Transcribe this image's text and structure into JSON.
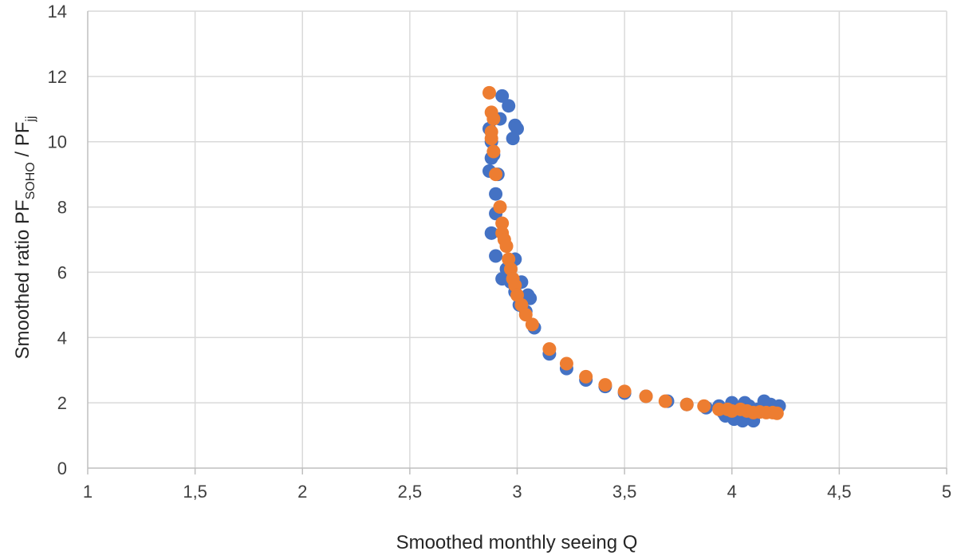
{
  "chart_data": {
    "type": "scatter",
    "xlabel": "Smoothed monthly seeing Q",
    "ylabel": {
      "base1": "Smoothed ratio PF",
      "sub1": "SOHO",
      "mid": " / PF",
      "sub2": "jj"
    },
    "xlim": [
      1,
      5
    ],
    "ylim": [
      0,
      14
    ],
    "x_ticks": [
      1,
      1.5,
      2,
      2.5,
      3,
      3.5,
      4,
      4.5,
      5
    ],
    "x_tick_labels": [
      "1",
      "1,5",
      "2",
      "2,5",
      "3",
      "3,5",
      "4",
      "4,5",
      "5"
    ],
    "y_ticks": [
      0,
      2,
      4,
      6,
      8,
      10,
      12,
      14
    ],
    "y_tick_labels": [
      "0",
      "2",
      "4",
      "6",
      "8",
      "10",
      "12",
      "14"
    ],
    "grid": true,
    "legend": "none",
    "series": [
      {
        "color": "#4472c4",
        "points": [
          [
            2.93,
            11.4
          ],
          [
            2.96,
            11.1
          ],
          [
            2.92,
            10.7
          ],
          [
            2.99,
            10.5
          ],
          [
            3.0,
            10.4
          ],
          [
            2.98,
            10.1
          ],
          [
            2.87,
            10.4
          ],
          [
            2.88,
            10.0
          ],
          [
            2.89,
            9.6
          ],
          [
            2.88,
            9.5
          ],
          [
            2.87,
            9.1
          ],
          [
            2.91,
            9.0
          ],
          [
            2.9,
            8.4
          ],
          [
            2.9,
            7.8
          ],
          [
            2.88,
            7.2
          ],
          [
            2.9,
            6.5
          ],
          [
            2.99,
            6.4
          ],
          [
            2.95,
            6.1
          ],
          [
            2.93,
            5.8
          ],
          [
            2.97,
            5.7
          ],
          [
            3.02,
            5.7
          ],
          [
            2.99,
            5.4
          ],
          [
            3.05,
            5.3
          ],
          [
            3.06,
            5.2
          ],
          [
            3.01,
            5.0
          ],
          [
            3.04,
            4.8
          ],
          [
            3.08,
            4.3
          ],
          [
            3.15,
            3.5
          ],
          [
            3.23,
            3.05
          ],
          [
            3.32,
            2.7
          ],
          [
            3.41,
            2.5
          ],
          [
            3.5,
            2.3
          ],
          [
            3.6,
            2.2
          ],
          [
            3.7,
            2.05
          ],
          [
            3.79,
            1.95
          ],
          [
            3.88,
            1.85
          ],
          [
            3.94,
            1.9
          ],
          [
            3.96,
            1.7
          ],
          [
            3.97,
            1.6
          ],
          [
            4.0,
            2.0
          ],
          [
            4.01,
            1.5
          ],
          [
            4.03,
            1.8
          ],
          [
            4.05,
            1.45
          ],
          [
            4.06,
            2.0
          ],
          [
            4.08,
            1.9
          ],
          [
            4.09,
            1.6
          ],
          [
            4.1,
            1.45
          ],
          [
            4.12,
            1.8
          ],
          [
            4.15,
            2.05
          ],
          [
            4.18,
            1.95
          ],
          [
            4.2,
            1.85
          ],
          [
            4.22,
            1.9
          ]
        ]
      },
      {
        "color": "#ed7d31",
        "points": [
          [
            2.87,
            11.5
          ],
          [
            2.88,
            10.9
          ],
          [
            2.89,
            10.7
          ],
          [
            2.88,
            10.3
          ],
          [
            2.88,
            10.1
          ],
          [
            2.89,
            9.7
          ],
          [
            2.9,
            9.0
          ],
          [
            2.92,
            8.0
          ],
          [
            2.93,
            7.5
          ],
          [
            2.93,
            7.2
          ],
          [
            2.94,
            7.0
          ],
          [
            2.95,
            6.8
          ],
          [
            2.96,
            6.4
          ],
          [
            2.97,
            6.1
          ],
          [
            2.98,
            5.8
          ],
          [
            2.99,
            5.6
          ],
          [
            3.0,
            5.3
          ],
          [
            3.02,
            5.0
          ],
          [
            3.04,
            4.7
          ],
          [
            3.07,
            4.4
          ],
          [
            3.15,
            3.65
          ],
          [
            3.23,
            3.2
          ],
          [
            3.32,
            2.8
          ],
          [
            3.41,
            2.55
          ],
          [
            3.5,
            2.35
          ],
          [
            3.6,
            2.2
          ],
          [
            3.69,
            2.05
          ],
          [
            3.79,
            1.95
          ],
          [
            3.87,
            1.9
          ],
          [
            3.94,
            1.8
          ],
          [
            3.98,
            1.8
          ],
          [
            4.0,
            1.75
          ],
          [
            4.04,
            1.8
          ],
          [
            4.07,
            1.75
          ],
          [
            4.1,
            1.7
          ],
          [
            4.13,
            1.72
          ],
          [
            4.16,
            1.7
          ],
          [
            4.19,
            1.7
          ],
          [
            4.21,
            1.68
          ]
        ]
      }
    ]
  }
}
